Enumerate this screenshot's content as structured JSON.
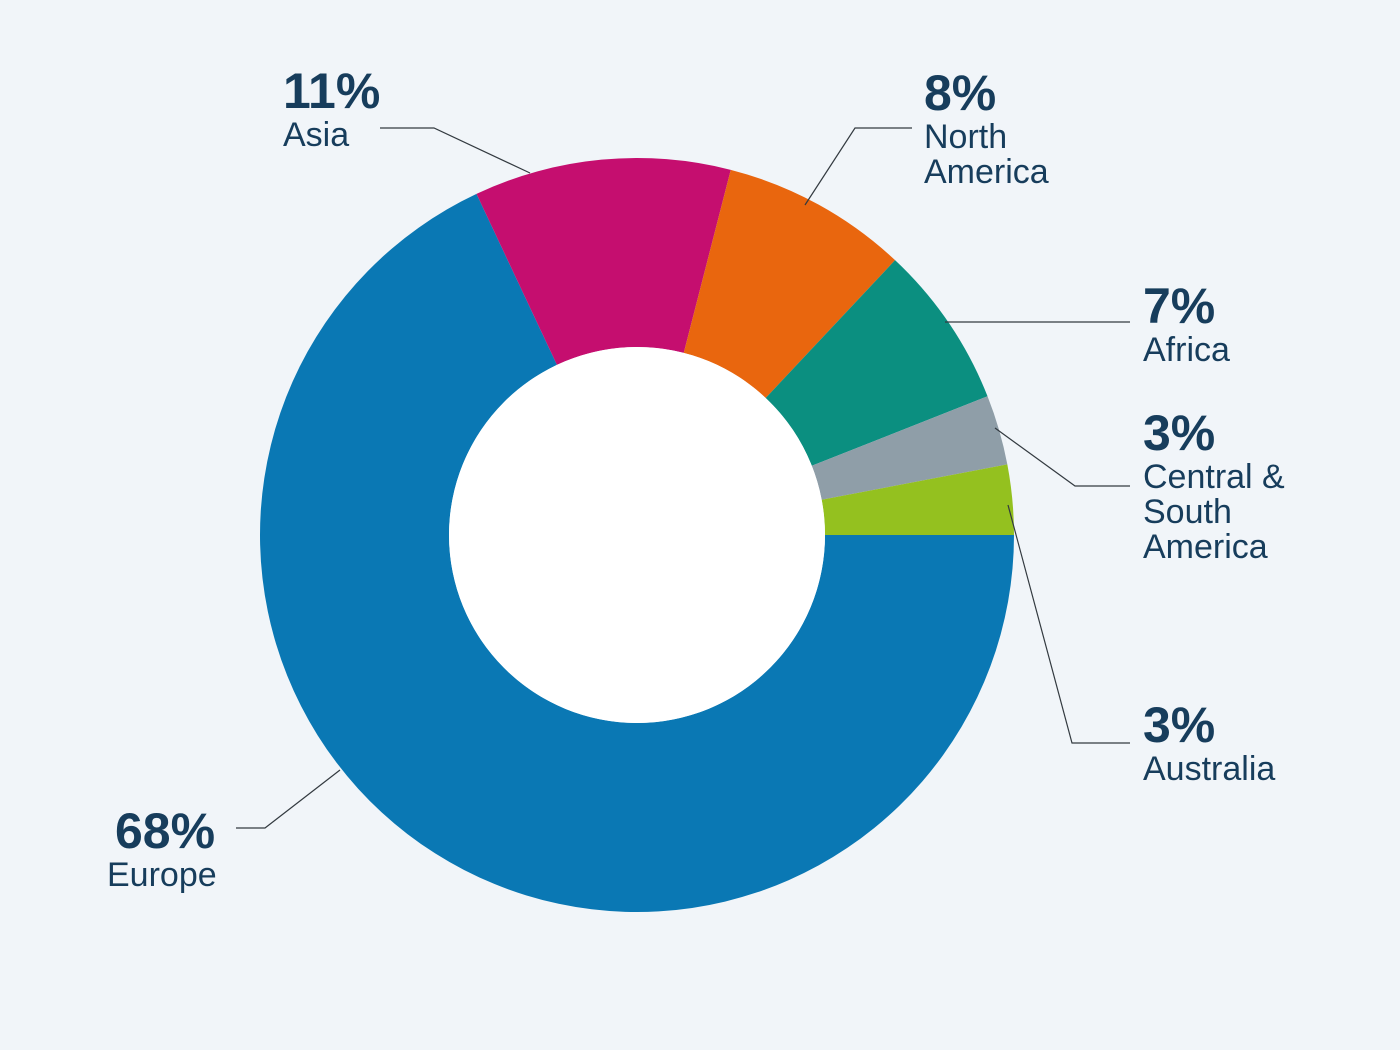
{
  "chart_data": {
    "type": "pie",
    "donut": true,
    "categories": [
      "Europe",
      "Asia",
      "North America",
      "Africa",
      "Central & South America",
      "Australia"
    ],
    "values": [
      68,
      11,
      8,
      7,
      3,
      3
    ],
    "unit": "%",
    "colors": [
      "#0a78b4",
      "#c50e6f",
      "#e9660e",
      "#0b8f80",
      "#8f9ea8",
      "#94c11f"
    ],
    "labels": [
      {
        "pct": "68%",
        "name_lines": [
          "Europe"
        ]
      },
      {
        "pct": "11%",
        "name_lines": [
          "Asia"
        ]
      },
      {
        "pct": "8%",
        "name_lines": [
          "North",
          "America"
        ]
      },
      {
        "pct": "7%",
        "name_lines": [
          "Africa"
        ]
      },
      {
        "pct": "3%",
        "name_lines": [
          "Central &",
          "South",
          "America"
        ]
      },
      {
        "pct": "3%",
        "name_lines": [
          "Australia"
        ]
      }
    ],
    "background": "#f1f5f9",
    "label_color": "#173d5c",
    "legend": "none"
  }
}
